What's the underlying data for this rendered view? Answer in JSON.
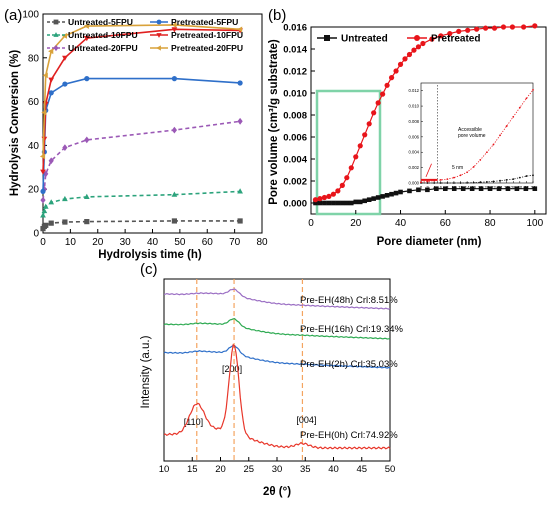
{
  "panels": {
    "a": "(a)",
    "b": "(b)",
    "c": "(c)"
  },
  "chart_data": [
    {
      "panel": "(a)",
      "type": "line",
      "xlabel": "Hydrolysis time (h)",
      "ylabel": "Hydrolysis Conversion (%)",
      "xlim": [
        0,
        80
      ],
      "ylim": [
        0,
        100
      ],
      "xticks": [
        "0",
        "10",
        "20",
        "30",
        "40",
        "50",
        "60",
        "70",
        "80"
      ],
      "yticks": [
        "0",
        "20",
        "40",
        "60",
        "80",
        "100"
      ],
      "legend_position": "top",
      "series": [
        {
          "name": "Untreated-5FPU",
          "color": "#555555",
          "marker": "square",
          "dash": true,
          "x": [
            0,
            0.5,
            1,
            3,
            8,
            16,
            48,
            72
          ],
          "y": [
            2,
            3,
            3.5,
            4.5,
            5,
            5.2,
            5.5,
            5.5
          ]
        },
        {
          "name": "Untreated-10FPU",
          "color": "#2ca37c",
          "marker": "triangle",
          "dash": true,
          "x": [
            0,
            0.5,
            1,
            3,
            8,
            16,
            48,
            72
          ],
          "y": [
            8,
            10,
            12,
            14,
            15.5,
            16.5,
            17.5,
            19
          ]
        },
        {
          "name": "Untreated-20FPU",
          "color": "#9b59b6",
          "marker": "diamond",
          "dash": true,
          "x": [
            0,
            0.5,
            1,
            3,
            8,
            16,
            48,
            72
          ],
          "y": [
            15,
            20,
            27,
            33,
            39,
            42.5,
            47,
            51
          ]
        },
        {
          "name": "Pretreated-5FPU",
          "color": "#2e6fc9",
          "marker": "circle",
          "dash": false,
          "x": [
            0,
            0.5,
            1,
            3,
            8,
            16,
            48,
            72
          ],
          "y": [
            19,
            37,
            56,
            64,
            68,
            70.5,
            70.5,
            68.5
          ]
        },
        {
          "name": "Pretreated-10FPU",
          "color": "#e02020",
          "marker": "triangle-down",
          "dash": false,
          "x": [
            0,
            0.5,
            1,
            3,
            8,
            16,
            48,
            72
          ],
          "y": [
            28,
            43,
            59,
            70,
            80,
            89,
            93,
            92.5
          ]
        },
        {
          "name": "Pretreated-20FPU",
          "color": "#d9a23a",
          "marker": "triangle-left",
          "dash": false,
          "x": [
            0,
            0.5,
            1,
            3,
            8,
            16,
            48,
            72
          ],
          "y": [
            35,
            55,
            72,
            83,
            90,
            94.5,
            95,
            93
          ]
        }
      ]
    },
    {
      "panel": "(b)",
      "type": "line",
      "xlabel": "Pore diameter (nm)",
      "ylabel": "Pore volume (cm³/g substrate)",
      "xlim": [
        0,
        105
      ],
      "ylim": [
        -0.001,
        0.016
      ],
      "xticks": [
        "0",
        "20",
        "40",
        "60",
        "80",
        "100"
      ],
      "yticks": [
        "0.000",
        "0.002",
        "0.004",
        "0.006",
        "0.008",
        "0.010",
        "0.012",
        "0.014",
        "0.016"
      ],
      "legend_position": "top",
      "series": [
        {
          "name": "Untreated",
          "color": "#111111",
          "marker": "square",
          "x": [
            2,
            4,
            6,
            8,
            10,
            12,
            14,
            16,
            18,
            20,
            22,
            24,
            26,
            28,
            30,
            32,
            34,
            36,
            38,
            40,
            44,
            48,
            52,
            56,
            60,
            64,
            68,
            72,
            76,
            80,
            84,
            88,
            92,
            96,
            100
          ],
          "y": [
            0.0,
            0.0,
            0.0,
            0.0,
            0.0,
            0.0,
            0.0,
            0.0,
            0.0,
            0.0001,
            0.0001,
            0.0002,
            0.0003,
            0.0004,
            0.0005,
            0.0006,
            0.0007,
            0.0008,
            0.0009,
            0.001,
            0.0011,
            0.0012,
            0.0012,
            0.0013,
            0.0013,
            0.0013,
            0.0013,
            0.0013,
            0.0013,
            0.0013,
            0.0013,
            0.0013,
            0.0013,
            0.0013,
            0.0013
          ]
        },
        {
          "name": "Pretreated",
          "color": "#e8141a",
          "marker": "circle",
          "x": [
            2,
            4,
            6,
            8,
            10,
            12,
            14,
            16,
            18,
            20,
            22,
            24,
            26,
            28,
            30,
            32,
            34,
            36,
            38,
            40,
            42,
            44,
            46,
            48,
            50,
            54,
            58,
            62,
            66,
            70,
            74,
            78,
            82,
            86,
            90,
            95,
            100
          ],
          "y": [
            0.0003,
            0.0004,
            0.0005,
            0.0006,
            0.0008,
            0.0011,
            0.0016,
            0.0023,
            0.0032,
            0.0042,
            0.0052,
            0.0062,
            0.0072,
            0.0082,
            0.0091,
            0.0099,
            0.0107,
            0.0114,
            0.012,
            0.0126,
            0.0131,
            0.0135,
            0.0139,
            0.0142,
            0.0145,
            0.0149,
            0.0152,
            0.0154,
            0.0156,
            0.0157,
            0.0158,
            0.0159,
            0.0159,
            0.016,
            0.016,
            0.016,
            0.0161
          ]
        }
      ],
      "inset": {
        "xticks": [
          "0",
          "2",
          "4",
          "6",
          "8",
          "10",
          "12",
          "14",
          "16",
          "18",
          "20",
          "22",
          "24",
          "26",
          "28",
          "30",
          "32",
          "34"
        ],
        "yticks": [
          "0.000",
          "0.002",
          "0.004",
          "0.006",
          "0.008",
          "0.010",
          "0.012"
        ],
        "xlim": [
          0,
          34
        ],
        "ylim": [
          0,
          0.013
        ],
        "annotations": [
          "Accessible",
          "pore volume",
          "5 nm"
        ],
        "series": [
          {
            "name": "Untreated",
            "color": "#111111",
            "x": [
              0,
              2,
              4,
              6,
              8,
              10,
              12,
              14,
              16,
              18,
              20,
              22,
              24,
              26,
              28,
              30,
              32,
              34
            ],
            "y": [
              0,
              0,
              0,
              0,
              0,
              0,
              0,
              2e-05,
              5e-05,
              0.0001,
              0.00015,
              0.0002,
              0.0003,
              0.0004,
              0.0005,
              0.0007,
              0.0009,
              0.001
            ]
          },
          {
            "name": "Pretreated",
            "color": "#e8141a",
            "x": [
              0,
              2,
              4,
              6,
              8,
              10,
              12,
              14,
              16,
              18,
              20,
              22,
              24,
              26,
              28,
              30,
              32,
              34
            ],
            "y": [
              0.0001,
              0.0002,
              0.0003,
              0.0004,
              0.0005,
              0.0007,
              0.001,
              0.0014,
              0.0021,
              0.003,
              0.004,
              0.005,
              0.0062,
              0.0074,
              0.0086,
              0.0098,
              0.011,
              0.0121
            ]
          }
        ]
      }
    },
    {
      "panel": "(c)",
      "type": "line",
      "xlabel": "2θ (°)",
      "ylabel": "Intensity (a.u.)",
      "xlim": [
        10,
        50
      ],
      "xticks": [
        "10",
        "15",
        "20",
        "25",
        "30",
        "35",
        "40",
        "45",
        "50"
      ],
      "peak_labels": [
        "[110]",
        "[200]",
        "[004]"
      ],
      "peak_positions": [
        15.8,
        22.4,
        34.5
      ],
      "series": [
        {
          "name": "Pre-EH(48h) Crl:8.51%",
          "color": "#9b6fc4",
          "offset": 4.5
        },
        {
          "name": "Pre-EH(16h) Crl:19.34%",
          "color": "#2eaa52",
          "offset": 3.0
        },
        {
          "name": "Pre-EH(2h) Crl:35.03%",
          "color": "#2e6fc9",
          "offset": 1.6
        },
        {
          "name": "Pre-EH(0h) Crl:74.92%",
          "color": "#e8372b",
          "offset": 0.0
        }
      ]
    }
  ]
}
